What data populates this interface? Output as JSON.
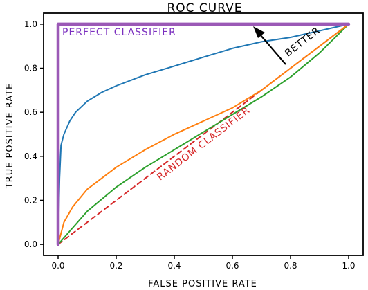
{
  "chart_data": {
    "type": "line",
    "title": "ROC CURVE",
    "xlabel": "FALSE POSITIVE RATE",
    "ylabel": "TRUE POSITIVE RATE",
    "xlim": [
      -0.05,
      1.05
    ],
    "ylim": [
      -0.05,
      1.05
    ],
    "xticks": [
      "0.0",
      "0.2",
      "0.4",
      "0.6",
      "0.8",
      "1.0"
    ],
    "yticks": [
      "0.0",
      "0.2",
      "0.4",
      "0.6",
      "0.8",
      "1.0"
    ],
    "grid": false,
    "legend": "none",
    "series": [
      {
        "color": "#1f77b4",
        "x": [
          0.0,
          0.005,
          0.01,
          0.02,
          0.04,
          0.06,
          0.1,
          0.15,
          0.2,
          0.3,
          0.4,
          0.5,
          0.6,
          0.7,
          0.8,
          0.9,
          1.0
        ],
        "y": [
          0.0,
          0.3,
          0.45,
          0.5,
          0.56,
          0.6,
          0.65,
          0.69,
          0.72,
          0.77,
          0.81,
          0.85,
          0.89,
          0.92,
          0.94,
          0.97,
          1.0
        ]
      },
      {
        "color": "#ff7f0e",
        "x": [
          0.0,
          0.02,
          0.05,
          0.1,
          0.2,
          0.3,
          0.4,
          0.5,
          0.6,
          0.7,
          0.8,
          0.9,
          1.0
        ],
        "y": [
          0.0,
          0.1,
          0.17,
          0.25,
          0.35,
          0.43,
          0.5,
          0.56,
          0.62,
          0.7,
          0.8,
          0.9,
          1.0
        ]
      },
      {
        "color": "#2ca02c",
        "x": [
          0.0,
          0.1,
          0.2,
          0.3,
          0.4,
          0.5,
          0.6,
          0.7,
          0.8,
          0.9,
          1.0
        ],
        "y": [
          0.0,
          0.15,
          0.26,
          0.35,
          0.43,
          0.51,
          0.59,
          0.67,
          0.76,
          0.87,
          1.0
        ]
      },
      {
        "color": "#d62728",
        "dashed": true,
        "x": [
          0.0,
          1.0
        ],
        "y": [
          0.0,
          1.0
        ]
      },
      {
        "color": "#9b59b6",
        "x": [
          0.0,
          0.0,
          1.0
        ],
        "y": [
          0.0,
          1.0,
          1.0
        ]
      }
    ],
    "annotations": [
      {
        "text": "PERFECT CLASSIFIER",
        "color": "#7b2fbf"
      },
      {
        "text": "RANDOM CLASSIFIER",
        "color": "#d62728"
      },
      {
        "text": "BETTER",
        "color": "#000000"
      }
    ]
  }
}
